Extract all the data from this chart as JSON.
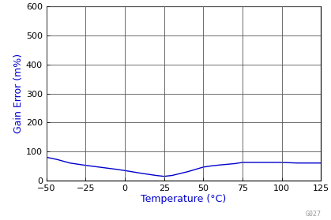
{
  "title": "",
  "xlabel": "Temperature (°C)",
  "ylabel": "Gain Error (m%)",
  "xlabel_color": "#0000CC",
  "ylabel_color": "#0000CC",
  "xlim": [
    -50,
    125
  ],
  "ylim": [
    0,
    600
  ],
  "xticks": [
    -50,
    -25,
    0,
    25,
    50,
    75,
    100,
    125
  ],
  "yticks": [
    0,
    100,
    200,
    300,
    400,
    500,
    600
  ],
  "line_color": "#0000CC",
  "line_width": 1.0,
  "background_color": "#ffffff",
  "grid_color": "#000000",
  "x_data": [
    -50,
    -43,
    -35,
    -25,
    -15,
    -5,
    0,
    10,
    20,
    25,
    30,
    40,
    50,
    55,
    60,
    70,
    75,
    85,
    100,
    110,
    125
  ],
  "y_data": [
    80,
    72,
    60,
    52,
    45,
    38,
    34,
    25,
    17,
    14,
    17,
    30,
    46,
    50,
    53,
    58,
    62,
    62,
    62,
    60,
    60
  ],
  "watermark": "G027",
  "watermark_color": "#999999",
  "tick_label_fontsize": 8,
  "axis_label_fontsize": 9
}
